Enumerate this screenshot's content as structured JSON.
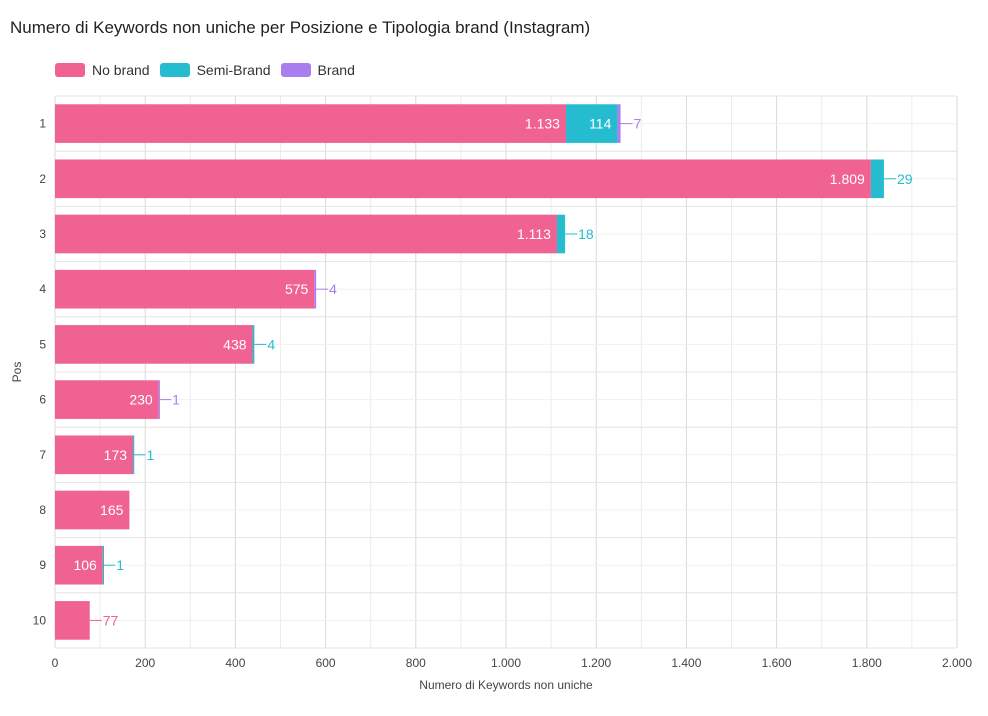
{
  "chart_data": {
    "type": "bar",
    "orientation": "horizontal",
    "stacked": true,
    "title": "Numero di Keywords non uniche per Posizione e Tipologia brand (Instagram)",
    "xlabel": "Numero di Keywords non uniche",
    "ylabel": "Pos",
    "categories": [
      "1",
      "2",
      "3",
      "4",
      "5",
      "6",
      "7",
      "8",
      "9",
      "10"
    ],
    "series": [
      {
        "name": "No brand",
        "color": "#f06292",
        "values": [
          1133,
          1809,
          1113,
          575,
          438,
          230,
          173,
          165,
          106,
          77
        ],
        "labels": [
          "1.133",
          "1.809",
          "1.113",
          "575",
          "438",
          "230",
          "173",
          "165",
          "106",
          "77"
        ]
      },
      {
        "name": "Semi-Brand",
        "color": "#26bcd0",
        "values": [
          114,
          29,
          18,
          0,
          4,
          0,
          1,
          0,
          1,
          0
        ],
        "labels": [
          "114",
          "29",
          "18",
          "",
          "4",
          "",
          "1",
          "",
          "1",
          ""
        ]
      },
      {
        "name": "Brand",
        "color": "#a97ff0",
        "values": [
          7,
          0,
          0,
          4,
          0,
          1,
          0,
          0,
          0,
          0
        ],
        "labels": [
          "7",
          "",
          "",
          "4",
          "",
          "1",
          "",
          "",
          "",
          ""
        ]
      }
    ],
    "xlim": [
      0,
      2000
    ],
    "xticks": [
      0,
      200,
      400,
      600,
      800,
      1000,
      1200,
      1400,
      1600,
      1800,
      2000
    ],
    "xtick_labels": [
      "0",
      "200",
      "400",
      "600",
      "800",
      "1.000",
      "1.200",
      "1.400",
      "1.600",
      "1.800",
      "2.000"
    ],
    "grid": true,
    "legend_position": "top-left"
  }
}
